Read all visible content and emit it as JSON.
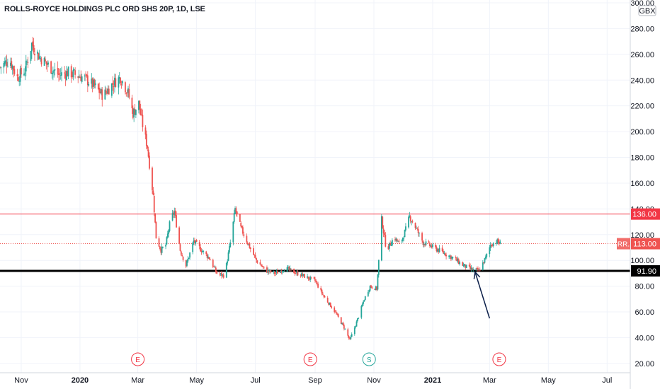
{
  "title": "ROLLS-ROYCE HOLDINGS PLC ORD SHS 20P, 1D, LSE",
  "currency": "GBX",
  "colors": {
    "up": "#26a69a",
    "down": "#ef5350",
    "level_red": "#f23645",
    "level_black": "#000000",
    "arrow": "#0b1f4a",
    "event": "#f23645",
    "split": "#26a69a"
  },
  "chart_data": {
    "type": "candlestick",
    "ylim": [
      15,
      300
    ],
    "y_ticks": [
      20,
      40,
      60,
      80,
      100,
      120,
      140,
      160,
      180,
      200,
      220,
      240,
      260,
      280,
      300
    ],
    "y_tick_labels": [
      "20.00",
      "40.00",
      "60.00",
      "80.00",
      "100.00",
      "120.00",
      "140.00",
      "160.00",
      "180.00",
      "200.00",
      "220.00",
      "240.00",
      "260.00",
      "280.00",
      "300.00"
    ],
    "x_ticks": [
      {
        "label": "Nov",
        "date": "2019-11-01",
        "bold": false
      },
      {
        "label": "2020",
        "date": "2020-01-01",
        "bold": true
      },
      {
        "label": "Mar",
        "date": "2020-03-01",
        "bold": false
      },
      {
        "label": "May",
        "date": "2020-05-01",
        "bold": false
      },
      {
        "label": "Jul",
        "date": "2020-07-01",
        "bold": false
      },
      {
        "label": "Sep",
        "date": "2020-09-01",
        "bold": false
      },
      {
        "label": "Nov",
        "date": "2020-11-01",
        "bold": false
      },
      {
        "label": "2021",
        "date": "2021-01-01",
        "bold": true
      },
      {
        "label": "Mar",
        "date": "2021-03-01",
        "bold": false
      },
      {
        "label": "May",
        "date": "2021-05-01",
        "bold": false
      },
      {
        "label": "Jul",
        "date": "2021-07-01",
        "bold": false
      }
    ],
    "xlim": [
      "2019-10-10",
      "2021-07-25"
    ],
    "close_path": [
      [
        "2019-10-10",
        250
      ],
      [
        "2019-10-20",
        256
      ],
      [
        "2019-10-28",
        242
      ],
      [
        "2019-11-05",
        248
      ],
      [
        "2019-11-12",
        268
      ],
      [
        "2019-11-20",
        258
      ],
      [
        "2019-12-01",
        250
      ],
      [
        "2019-12-10",
        244
      ],
      [
        "2019-12-20",
        246
      ],
      [
        "2020-01-05",
        242
      ],
      [
        "2020-01-15",
        236
      ],
      [
        "2020-01-25",
        228
      ],
      [
        "2020-02-05",
        238
      ],
      [
        "2020-02-12",
        242
      ],
      [
        "2020-02-20",
        230
      ],
      [
        "2020-02-25",
        214
      ],
      [
        "2020-03-02",
        222
      ],
      [
        "2020-03-06",
        205
      ],
      [
        "2020-03-11",
        188
      ],
      [
        "2020-03-14",
        168
      ],
      [
        "2020-03-17",
        150
      ],
      [
        "2020-03-20",
        118
      ],
      [
        "2020-03-25",
        108
      ],
      [
        "2020-03-30",
        112
      ],
      [
        "2020-04-04",
        132
      ],
      [
        "2020-04-08",
        138
      ],
      [
        "2020-04-14",
        108
      ],
      [
        "2020-04-20",
        96
      ],
      [
        "2020-04-28",
        115
      ],
      [
        "2020-05-06",
        108
      ],
      [
        "2020-05-14",
        102
      ],
      [
        "2020-05-22",
        90
      ],
      [
        "2020-05-30",
        88
      ],
      [
        "2020-06-06",
        118
      ],
      [
        "2020-06-10",
        140
      ],
      [
        "2020-06-16",
        125
      ],
      [
        "2020-06-24",
        112
      ],
      [
        "2020-07-02",
        100
      ],
      [
        "2020-07-12",
        92
      ],
      [
        "2020-07-22",
        90
      ],
      [
        "2020-08-01",
        94
      ],
      [
        "2020-08-10",
        91
      ],
      [
        "2020-08-20",
        88
      ],
      [
        "2020-09-01",
        84
      ],
      [
        "2020-09-10",
        72
      ],
      [
        "2020-09-20",
        62
      ],
      [
        "2020-10-01",
        48
      ],
      [
        "2020-10-07",
        38
      ],
      [
        "2020-10-14",
        52
      ],
      [
        "2020-10-22",
        70
      ],
      [
        "2020-10-28",
        80
      ],
      [
        "2020-11-04",
        78
      ],
      [
        "2020-11-09",
        132
      ],
      [
        "2020-11-14",
        108
      ],
      [
        "2020-11-22",
        118
      ],
      [
        "2020-11-28",
        112
      ],
      [
        "2020-12-04",
        124
      ],
      [
        "2020-12-08",
        134
      ],
      [
        "2020-12-14",
        126
      ],
      [
        "2020-12-22",
        114
      ],
      [
        "2021-01-02",
        110
      ],
      [
        "2021-01-12",
        106
      ],
      [
        "2021-01-22",
        102
      ],
      [
        "2021-02-02",
        96
      ],
      [
        "2021-02-10",
        93
      ],
      [
        "2021-02-18",
        92
      ],
      [
        "2021-02-25",
        102
      ],
      [
        "2021-03-02",
        112
      ],
      [
        "2021-03-08",
        115
      ],
      [
        "2021-03-12",
        113
      ]
    ],
    "levels": [
      {
        "value": 136.0,
        "label": "136.00",
        "color": "#f23645",
        "width": 1
      },
      {
        "value": 91.9,
        "label": "91.90",
        "color": "#000000",
        "width": 3
      }
    ],
    "last_price": {
      "value": 113.0,
      "label": "113.00",
      "symbol": "RR.",
      "color": "#ef5350"
    },
    "events": [
      {
        "date": "2020-03-01",
        "label": "E",
        "type": "earnings"
      },
      {
        "date": "2020-08-27",
        "label": "E",
        "type": "earnings"
      },
      {
        "date": "2020-10-27",
        "label": "S",
        "type": "split"
      },
      {
        "date": "2021-03-11",
        "label": "E",
        "type": "earnings"
      }
    ],
    "arrow": {
      "from": [
        "2021-03-01",
        55
      ],
      "to": [
        "2021-02-14",
        91
      ]
    }
  }
}
